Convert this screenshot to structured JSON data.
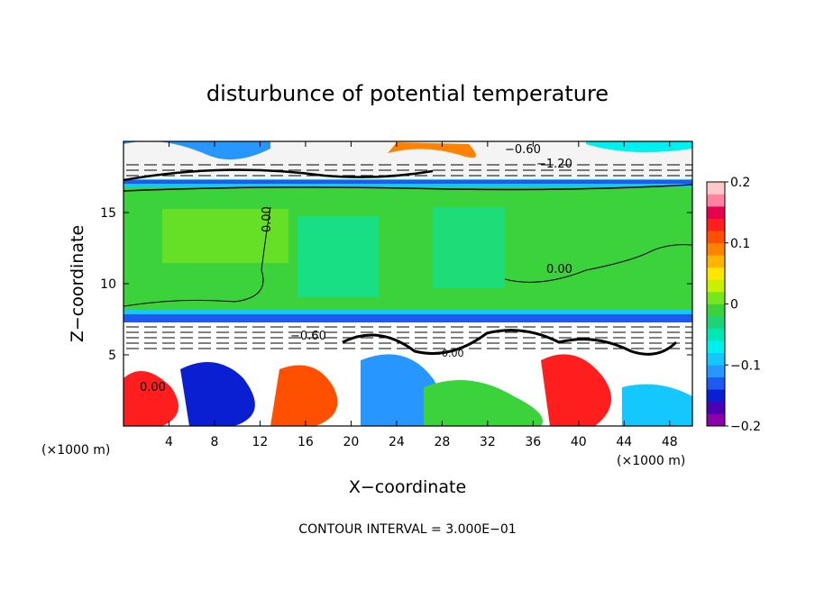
{
  "chart_data": {
    "type": "heatmap",
    "title": "disturbunce of potential temperature",
    "xlabel": "X−coordinate",
    "ylabel": "Z−coordinate",
    "x_unit_label": "(×1000 m)",
    "y_unit_label": "(×1000 m)",
    "xlim": [
      0,
      50
    ],
    "ylim": [
      0,
      20
    ],
    "x_ticks": [
      "4",
      "8",
      "12",
      "16",
      "20",
      "24",
      "28",
      "32",
      "36",
      "40",
      "44",
      "48"
    ],
    "y_ticks": [
      "5",
      "10",
      "15"
    ],
    "colorbar": {
      "range": [
        -0.2,
        0.2
      ],
      "tick_labels": [
        "0.2",
        "0.1",
        "0",
        "−0.1",
        "−0.2"
      ],
      "colors": [
        "#8b00a8",
        "#4b00b4",
        "#0a1ed2",
        "#1e5af0",
        "#2896ff",
        "#14c8ff",
        "#00f0f0",
        "#00e6b4",
        "#1ed278",
        "#3cd23c",
        "#78e61e",
        "#c8f000",
        "#ffe600",
        "#ffb400",
        "#ff8200",
        "#ff5000",
        "#ff1e1e",
        "#e60050",
        "#ff82a0",
        "#ffc8c8"
      ]
    },
    "contour_labels": [
      "−0.60",
      "−1.20",
      "0.00",
      "0.00",
      "−0.60",
      "0.00",
      "0.00"
    ],
    "contour_interval_label": "CONTOUR INTERVAL = 3.000E−01",
    "grid": false
  }
}
